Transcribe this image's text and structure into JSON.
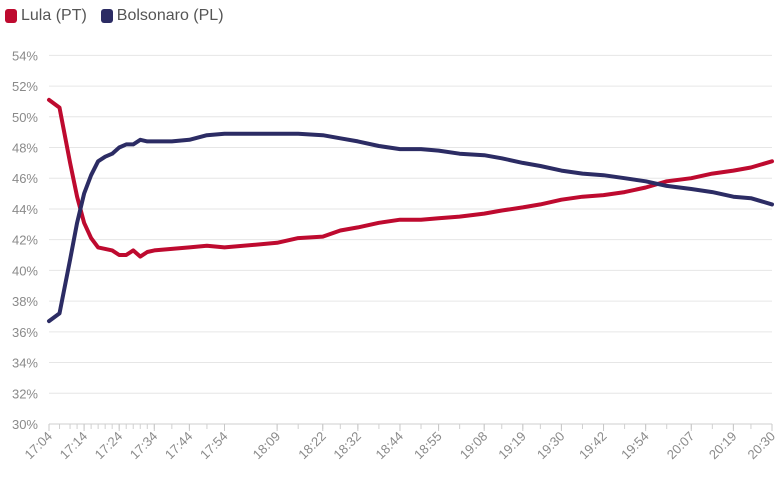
{
  "chart_data": {
    "type": "line",
    "title": "",
    "xlabel": "",
    "ylabel": "",
    "ylim": [
      30,
      55
    ],
    "y_ticks": [
      "30%",
      "32%",
      "34%",
      "36%",
      "38%",
      "40%",
      "42%",
      "44%",
      "46%",
      "48%",
      "50%",
      "52%",
      "54%"
    ],
    "x_ticks": [
      "17:04",
      "17:14",
      "17:24",
      "17:34",
      "17:44",
      "17:54",
      "18:09",
      "18:22",
      "18:32",
      "18:44",
      "18:55",
      "19:08",
      "19:19",
      "19:30",
      "19:42",
      "19:54",
      "20:07",
      "20:19",
      "20:30"
    ],
    "grid": true,
    "legend_position": "top-left",
    "x": [
      "17:04",
      "17:07",
      "17:10",
      "17:12",
      "17:14",
      "17:16",
      "17:18",
      "17:20",
      "17:22",
      "17:24",
      "17:26",
      "17:28",
      "17:30",
      "17:32",
      "17:34",
      "17:39",
      "17:44",
      "17:49",
      "17:54",
      "18:09",
      "18:15",
      "18:22",
      "18:27",
      "18:32",
      "18:38",
      "18:44",
      "18:50",
      "18:55",
      "19:01",
      "19:08",
      "19:13",
      "19:19",
      "19:24",
      "19:30",
      "19:36",
      "19:42",
      "19:48",
      "19:54",
      "20:00",
      "20:07",
      "20:13",
      "20:19",
      "20:24",
      "20:30"
    ],
    "series": [
      {
        "name": "Lula (PT)",
        "color": "#be0a2f",
        "values": [
          51.1,
          50.6,
          47.0,
          44.8,
          43.1,
          42.1,
          41.5,
          41.4,
          41.3,
          41.0,
          41.0,
          41.3,
          40.9,
          41.2,
          41.3,
          41.4,
          41.5,
          41.6,
          41.5,
          41.8,
          42.1,
          42.2,
          42.6,
          42.8,
          43.1,
          43.3,
          43.3,
          43.4,
          43.5,
          43.7,
          43.9,
          44.1,
          44.3,
          44.6,
          44.8,
          44.9,
          45.1,
          45.4,
          45.8,
          46.0,
          46.3,
          46.5,
          46.7,
          47.1
        ]
      },
      {
        "name": "Bolsonaro (PL)",
        "color": "#2c2c64",
        "values": [
          36.7,
          37.2,
          40.7,
          43.1,
          45.0,
          46.2,
          47.1,
          47.4,
          47.6,
          48.0,
          48.2,
          48.2,
          48.5,
          48.4,
          48.4,
          48.4,
          48.5,
          48.8,
          48.9,
          48.9,
          48.9,
          48.8,
          48.6,
          48.4,
          48.1,
          47.9,
          47.9,
          47.8,
          47.6,
          47.5,
          47.3,
          47.0,
          46.8,
          46.5,
          46.3,
          46.2,
          46.0,
          45.8,
          45.5,
          45.3,
          45.1,
          44.8,
          44.7,
          44.3
        ]
      }
    ]
  }
}
